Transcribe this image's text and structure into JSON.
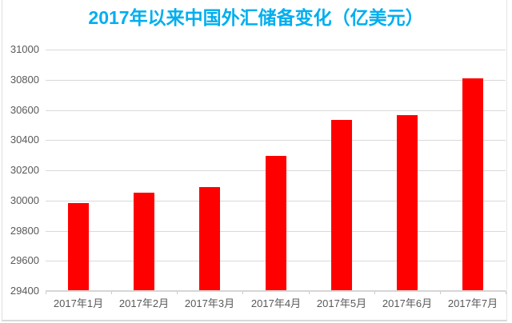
{
  "title": "2017年以来中国外汇储备变化（亿美元）",
  "colors": {
    "title_text": "#00aeef",
    "bar_fill": "#ff0000",
    "axis_text": "#595959",
    "gridline": "#d9d9d9",
    "axis_line": "#d6d6d6",
    "frame_border": "#dedede",
    "background": "#ffffff"
  },
  "chart_data": {
    "type": "bar",
    "title": "2017年以来中国外汇储备变化（亿美元）",
    "xlabel": "",
    "ylabel": "",
    "categories": [
      "2017年1月",
      "2017年2月",
      "2017年3月",
      "2017年4月",
      "2017年5月",
      "2017年6月",
      "2017年7月"
    ],
    "values": [
      29982,
      30051,
      30091,
      30295,
      30536,
      30568,
      30807
    ],
    "ylim": [
      29400,
      31000
    ],
    "ytick_step": 200,
    "yticks": [
      31000,
      30800,
      30600,
      30400,
      30200,
      30000,
      29800,
      29600,
      29400
    ],
    "grid": true,
    "legend": false,
    "series_color": "#ff0000"
  }
}
